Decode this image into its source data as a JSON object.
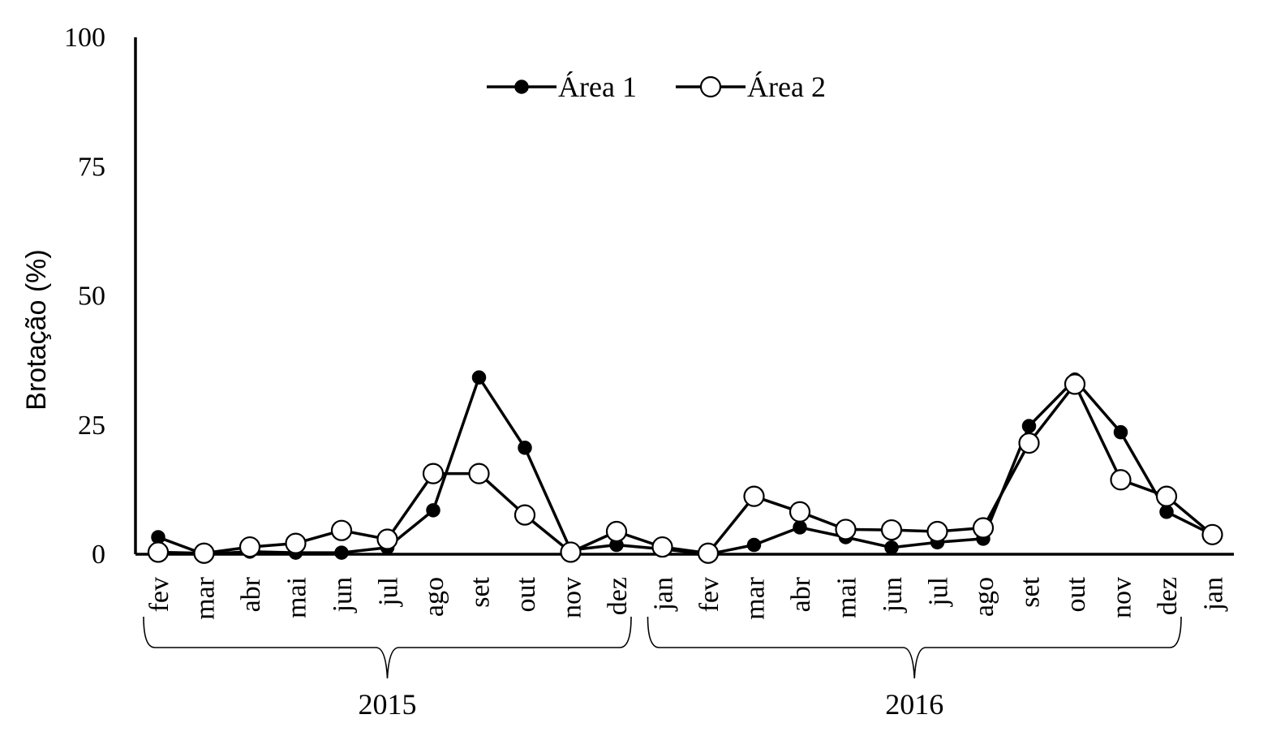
{
  "chart_data": {
    "type": "line",
    "title": "",
    "xlabel": "",
    "ylabel": "Brotação (%)",
    "ylim": [
      0,
      100
    ],
    "yticks": [
      0,
      25,
      50,
      75,
      100
    ],
    "grid": false,
    "legend_position": "top-center",
    "categories": [
      "fev",
      "mar",
      "abr",
      "mai",
      "jun",
      "jul",
      "ago",
      "set",
      "out",
      "nov",
      "dez",
      "jan",
      "fev",
      "mar",
      "abr",
      "mai",
      "jun",
      "jul",
      "ago",
      "set",
      "out",
      "nov",
      "dez",
      "jan"
    ],
    "groups": [
      {
        "label": "2015",
        "start": 0,
        "end": 10
      },
      {
        "label": "2016",
        "start": 11,
        "end": 22
      }
    ],
    "series": [
      {
        "name": "Área 1",
        "marker": "filled",
        "color": "#000000",
        "values": [
          3.3,
          0,
          0.5,
          0.3,
          0.3,
          1.3,
          8.5,
          34.2,
          20.6,
          0.8,
          1.8,
          1,
          0,
          1.8,
          5.2,
          3.3,
          1.3,
          2.3,
          3.0,
          24.8,
          33.8,
          23.6,
          8.2,
          3.8
        ]
      },
      {
        "name": "Área 2",
        "marker": "open",
        "color": "#000000",
        "values": [
          0.4,
          0.2,
          1.4,
          2.1,
          4.6,
          2.9,
          15.6,
          15.6,
          7.6,
          0.4,
          4.4,
          1.4,
          0.2,
          11.2,
          8.2,
          4.8,
          4.7,
          4.4,
          5.1,
          21.5,
          32.9,
          14.4,
          11.2,
          3.8
        ]
      }
    ]
  }
}
